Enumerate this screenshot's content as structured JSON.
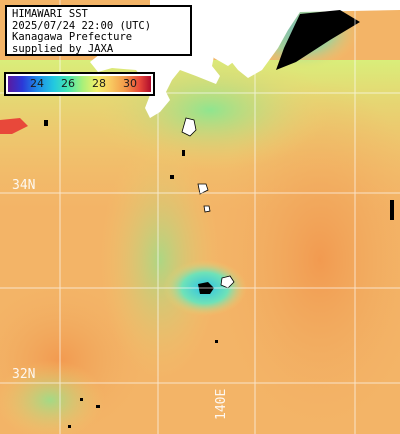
{
  "header": {
    "lines": [
      "HIMAWARI SST",
      "2025/07/24 22:00 (UTC)",
      "Kanagawa Prefecture",
      "supplied by JAXA"
    ]
  },
  "legend": {
    "ticks": [
      "24",
      "26",
      "28",
      "30"
    ]
  },
  "grid": {
    "lat_labels": [
      "34N",
      "32N"
    ],
    "lon_labels": [
      "140E"
    ]
  },
  "colors": {
    "land": "#ffffff",
    "cloud_mask": "#000000",
    "warm": "#f2a35a",
    "mid": "#f5d472",
    "cool": "#9be68a",
    "cold": "#27c9e3"
  }
}
